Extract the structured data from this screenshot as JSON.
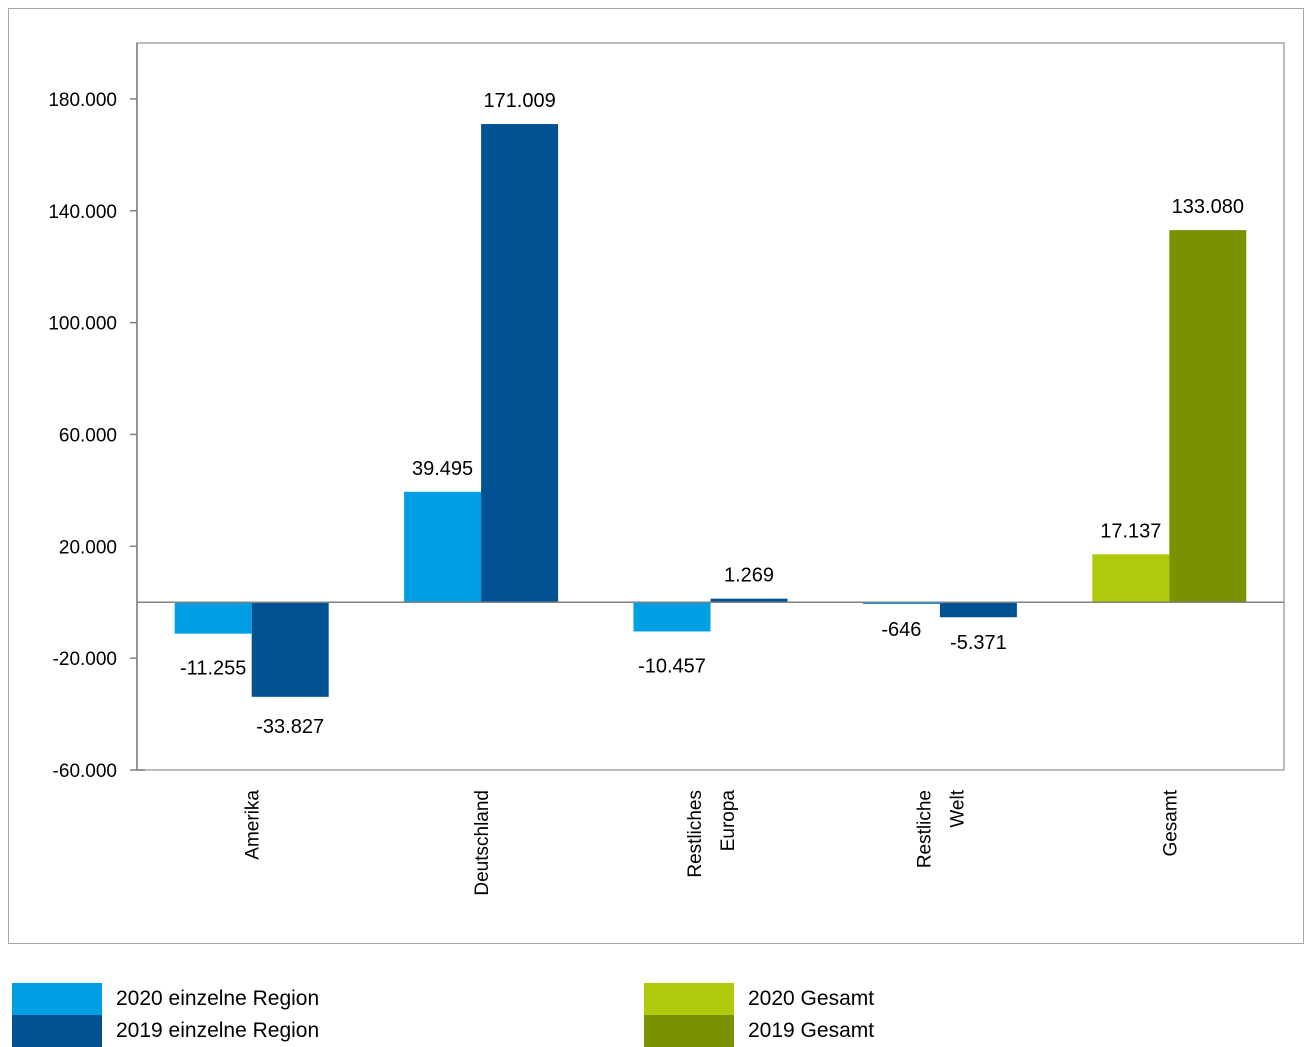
{
  "chart_data": {
    "type": "bar",
    "title": "",
    "xlabel": "",
    "ylabel": "",
    "ylim": [
      -60000,
      200000
    ],
    "yticks": [
      -60000,
      -20000,
      20000,
      60000,
      100000,
      140000,
      180000
    ],
    "ytick_labels": [
      "-60.000",
      "-20.000",
      "20.000",
      "60.000",
      "100.000",
      "140.000",
      "180.000"
    ],
    "categories": [
      {
        "lines": [
          "Amerika"
        ]
      },
      {
        "lines": [
          "Deutschland"
        ]
      },
      {
        "lines": [
          "Restliches",
          "Europa"
        ]
      },
      {
        "lines": [
          "Restliche",
          "Welt"
        ]
      },
      {
        "lines": [
          "Gesamt"
        ]
      }
    ],
    "series": [
      {
        "name": "2020 einzelne Region",
        "color": "#009fe3",
        "values": [
          -11255,
          39495,
          -10457,
          -646,
          null
        ],
        "labels": [
          "-11.255",
          "39.495",
          "-10.457",
          "-646",
          ""
        ]
      },
      {
        "name": "2019 einzelne Region",
        "color": "#005293",
        "values": [
          -33827,
          171009,
          1269,
          -5371,
          null
        ],
        "labels": [
          "-33.827",
          "171.009",
          "1.269",
          "-5.371",
          ""
        ]
      },
      {
        "name": "2020 Gesamt",
        "color": "#afca0b",
        "values": [
          null,
          null,
          null,
          null,
          17137
        ],
        "labels": [
          "",
          "",
          "",
          "",
          "17.137"
        ]
      },
      {
        "name": "2019 Gesamt",
        "color": "#7a9200",
        "values": [
          null,
          null,
          null,
          null,
          133080
        ],
        "labels": [
          "",
          "",
          "",
          "",
          "133.080"
        ]
      }
    ],
    "grid": false,
    "legend": "bottom"
  }
}
